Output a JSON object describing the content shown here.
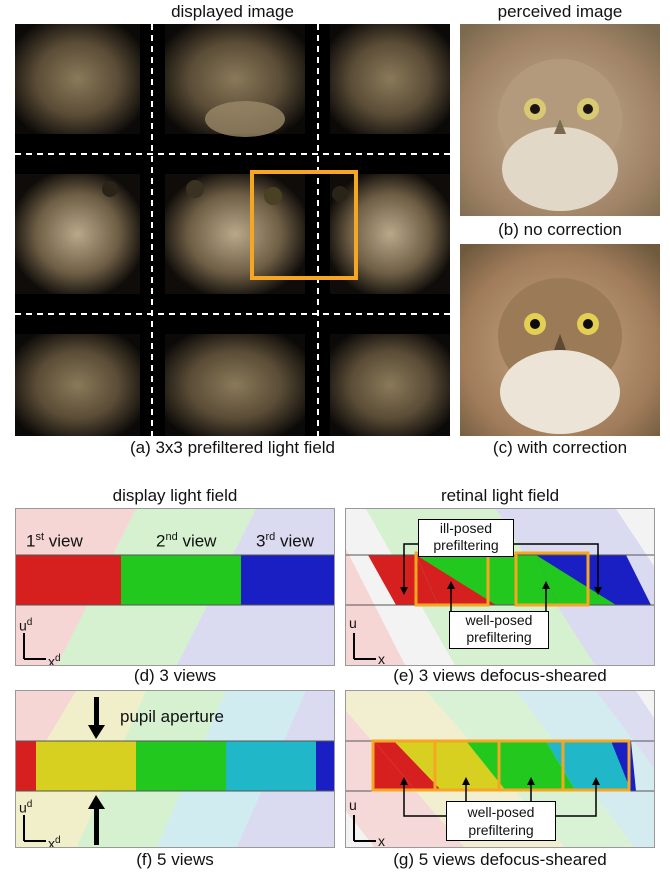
{
  "top": {
    "displayed_title": "displayed image",
    "perceived_title": "perceived image",
    "caption_a": "(a) 3x3 prefiltered light field",
    "caption_b": "(b) no correction",
    "caption_c": "(c) with correction"
  },
  "middle": {
    "display_title": "display light field",
    "retinal_title": "retinal light field",
    "view1": "1",
    "view1_sup": "st",
    "view2": "2",
    "view2_sup": "nd",
    "view3": "3",
    "view3_sup": "rd",
    "view_word": " view",
    "ill_posed": "ill-posed",
    "well_posed": "well-posed",
    "prefiltering": "prefiltering",
    "caption_d": "(d) 3 views",
    "caption_e": "(e) 3 views defocus-sheared"
  },
  "bottom": {
    "pupil_aperture": "pupil aperture",
    "well_posed": "well-posed",
    "prefiltering": "prefiltering",
    "caption_f": "(f) 5 views",
    "caption_g": "(g) 5 views defocus-sheared"
  },
  "axes": {
    "u_d": "u",
    "u_d_sup": "d",
    "x_d": "x",
    "x_d_sup": "d",
    "u": "u",
    "x": "x"
  },
  "colors": {
    "highlight": "#f5a623",
    "red": "#d62020",
    "green": "#22c81e",
    "blue": "#1a1fc4",
    "yellow": "#d8d020",
    "cyan": "#20b8c8"
  }
}
